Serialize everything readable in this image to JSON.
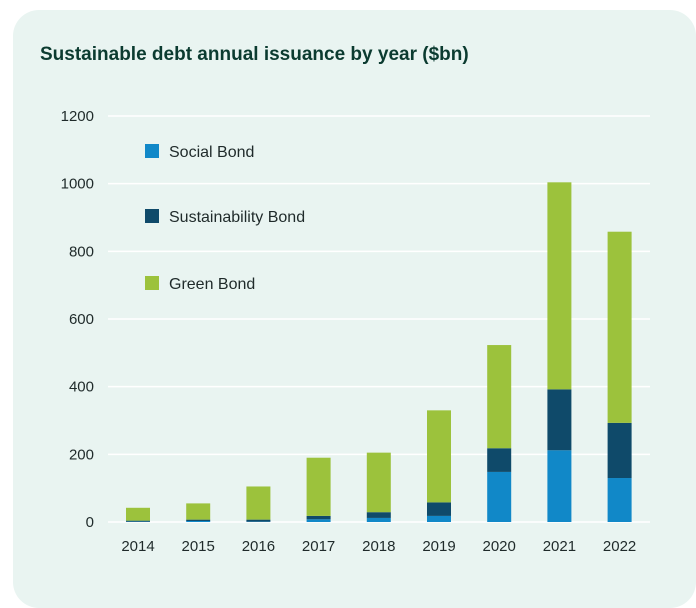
{
  "colors": {
    "social": "#1188c8",
    "sustainability": "#0f4a6a",
    "green": "#9cc23c",
    "background": "#e9f4f1",
    "title": "#0b3b30"
  },
  "chart_data": {
    "type": "bar",
    "stacked": true,
    "title": "Sustainable debt annual issuance by year ($bn)",
    "xlabel": "",
    "ylabel": "",
    "categories": [
      "2014",
      "2015",
      "2016",
      "2017",
      "2018",
      "2019",
      "2020",
      "2021",
      "2022"
    ],
    "yticks": [
      "0",
      "200",
      "400",
      "600",
      "800",
      "1000",
      "1200"
    ],
    "ylim": [
      0,
      1200
    ],
    "grid": true,
    "legend_position": "top-left",
    "series": [
      {
        "name": "Social Bond",
        "color": "#1188c8",
        "values": [
          1,
          3,
          1,
          8,
          12,
          18,
          148,
          212,
          130
        ]
      },
      {
        "name": "Sustainability Bond",
        "color": "#0f4a6a",
        "values": [
          3,
          4,
          6,
          10,
          17,
          40,
          70,
          180,
          163
        ]
      },
      {
        "name": "Green Bond",
        "color": "#9cc23c",
        "values": [
          38,
          48,
          98,
          172,
          176,
          272,
          305,
          612,
          565
        ]
      }
    ]
  }
}
